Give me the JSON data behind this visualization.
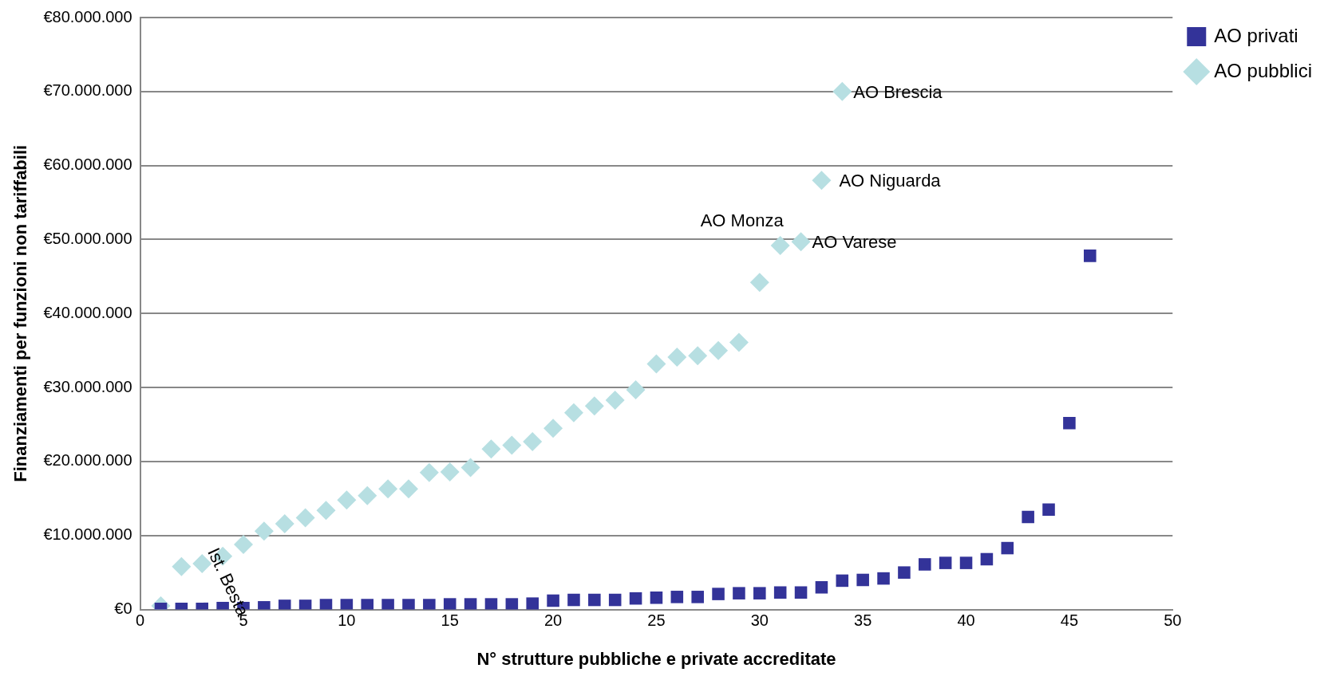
{
  "chart_data": {
    "type": "scatter",
    "xlabel": "N° strutture pubbliche e private accreditate",
    "ylabel": "Finanziamenti per funzioni non tariffabili",
    "xlim": [
      0,
      50
    ],
    "xticks": [
      0,
      5,
      10,
      15,
      20,
      25,
      30,
      35,
      40,
      45,
      50
    ],
    "ylim": [
      0,
      80000000
    ],
    "yticks": [
      {
        "value": 0,
        "label": "€0"
      },
      {
        "value": 10000000,
        "label": "€10.000.000"
      },
      {
        "value": 20000000,
        "label": "€20.000.000"
      },
      {
        "value": 30000000,
        "label": "€30.000.000"
      },
      {
        "value": 40000000,
        "label": "€40.000.000"
      },
      {
        "value": 50000000,
        "label": "€50.000.000"
      },
      {
        "value": 60000000,
        "label": "€60.000.000"
      },
      {
        "value": 70000000,
        "label": "€70.000.000"
      },
      {
        "value": 80000000,
        "label": "€80.000.000"
      }
    ],
    "grid": "y",
    "legend": "top right",
    "series": [
      {
        "name": "AO pubblici",
        "color": "#b7dfe2",
        "marker": "diamond",
        "x": [
          1,
          2,
          3,
          4,
          5,
          6,
          7,
          8,
          9,
          10,
          11,
          12,
          13,
          14,
          15,
          16,
          17,
          18,
          19,
          20,
          21,
          22,
          23,
          24,
          25,
          26,
          27,
          28,
          29,
          30,
          31,
          32,
          33,
          34
        ],
        "values": [
          500000,
          5800000,
          6200000,
          7200000,
          8800000,
          10600000,
          11600000,
          12400000,
          13400000,
          14800000,
          15400000,
          16300000,
          16300000,
          18500000,
          18600000,
          19200000,
          21700000,
          22200000,
          22700000,
          24500000,
          26600000,
          27500000,
          28300000,
          29700000,
          33200000,
          34100000,
          34300000,
          35000000,
          36100000,
          44200000,
          49200000,
          49700000,
          58000000,
          70000000
        ]
      },
      {
        "name": "AO privati",
        "color": "#333399",
        "marker": "square",
        "x": [
          1,
          2,
          3,
          4,
          5,
          6,
          7,
          8,
          9,
          10,
          11,
          12,
          13,
          14,
          15,
          16,
          17,
          18,
          19,
          20,
          21,
          22,
          23,
          24,
          25,
          26,
          27,
          28,
          29,
          30,
          31,
          32,
          33,
          34,
          35,
          36,
          37,
          38,
          39,
          40,
          41,
          42,
          43,
          44,
          45,
          46
        ],
        "values": [
          100000,
          100000,
          100000,
          200000,
          200000,
          300000,
          500000,
          500000,
          600000,
          600000,
          600000,
          600000,
          600000,
          600000,
          700000,
          700000,
          700000,
          700000,
          800000,
          1200000,
          1300000,
          1300000,
          1300000,
          1500000,
          1600000,
          1700000,
          1700000,
          2100000,
          2200000,
          2200000,
          2300000,
          2300000,
          3000000,
          3900000,
          4000000,
          4200000,
          5000000,
          6100000,
          6300000,
          6300000,
          6800000,
          8300000,
          12500000,
          13500000,
          25200000,
          47800000
        ]
      }
    ],
    "annotations": [
      {
        "text": "Ist. Besta",
        "x": 3,
        "y": 6200000
      },
      {
        "text": "AO Monza",
        "x": 31,
        "y": 49200000
      },
      {
        "text": "AO Varese",
        "x": 32,
        "y": 49700000
      },
      {
        "text": "AO Niguarda",
        "x": 33,
        "y": 58000000
      },
      {
        "text": "AO Brescia",
        "x": 34,
        "y": 70000000
      }
    ]
  }
}
